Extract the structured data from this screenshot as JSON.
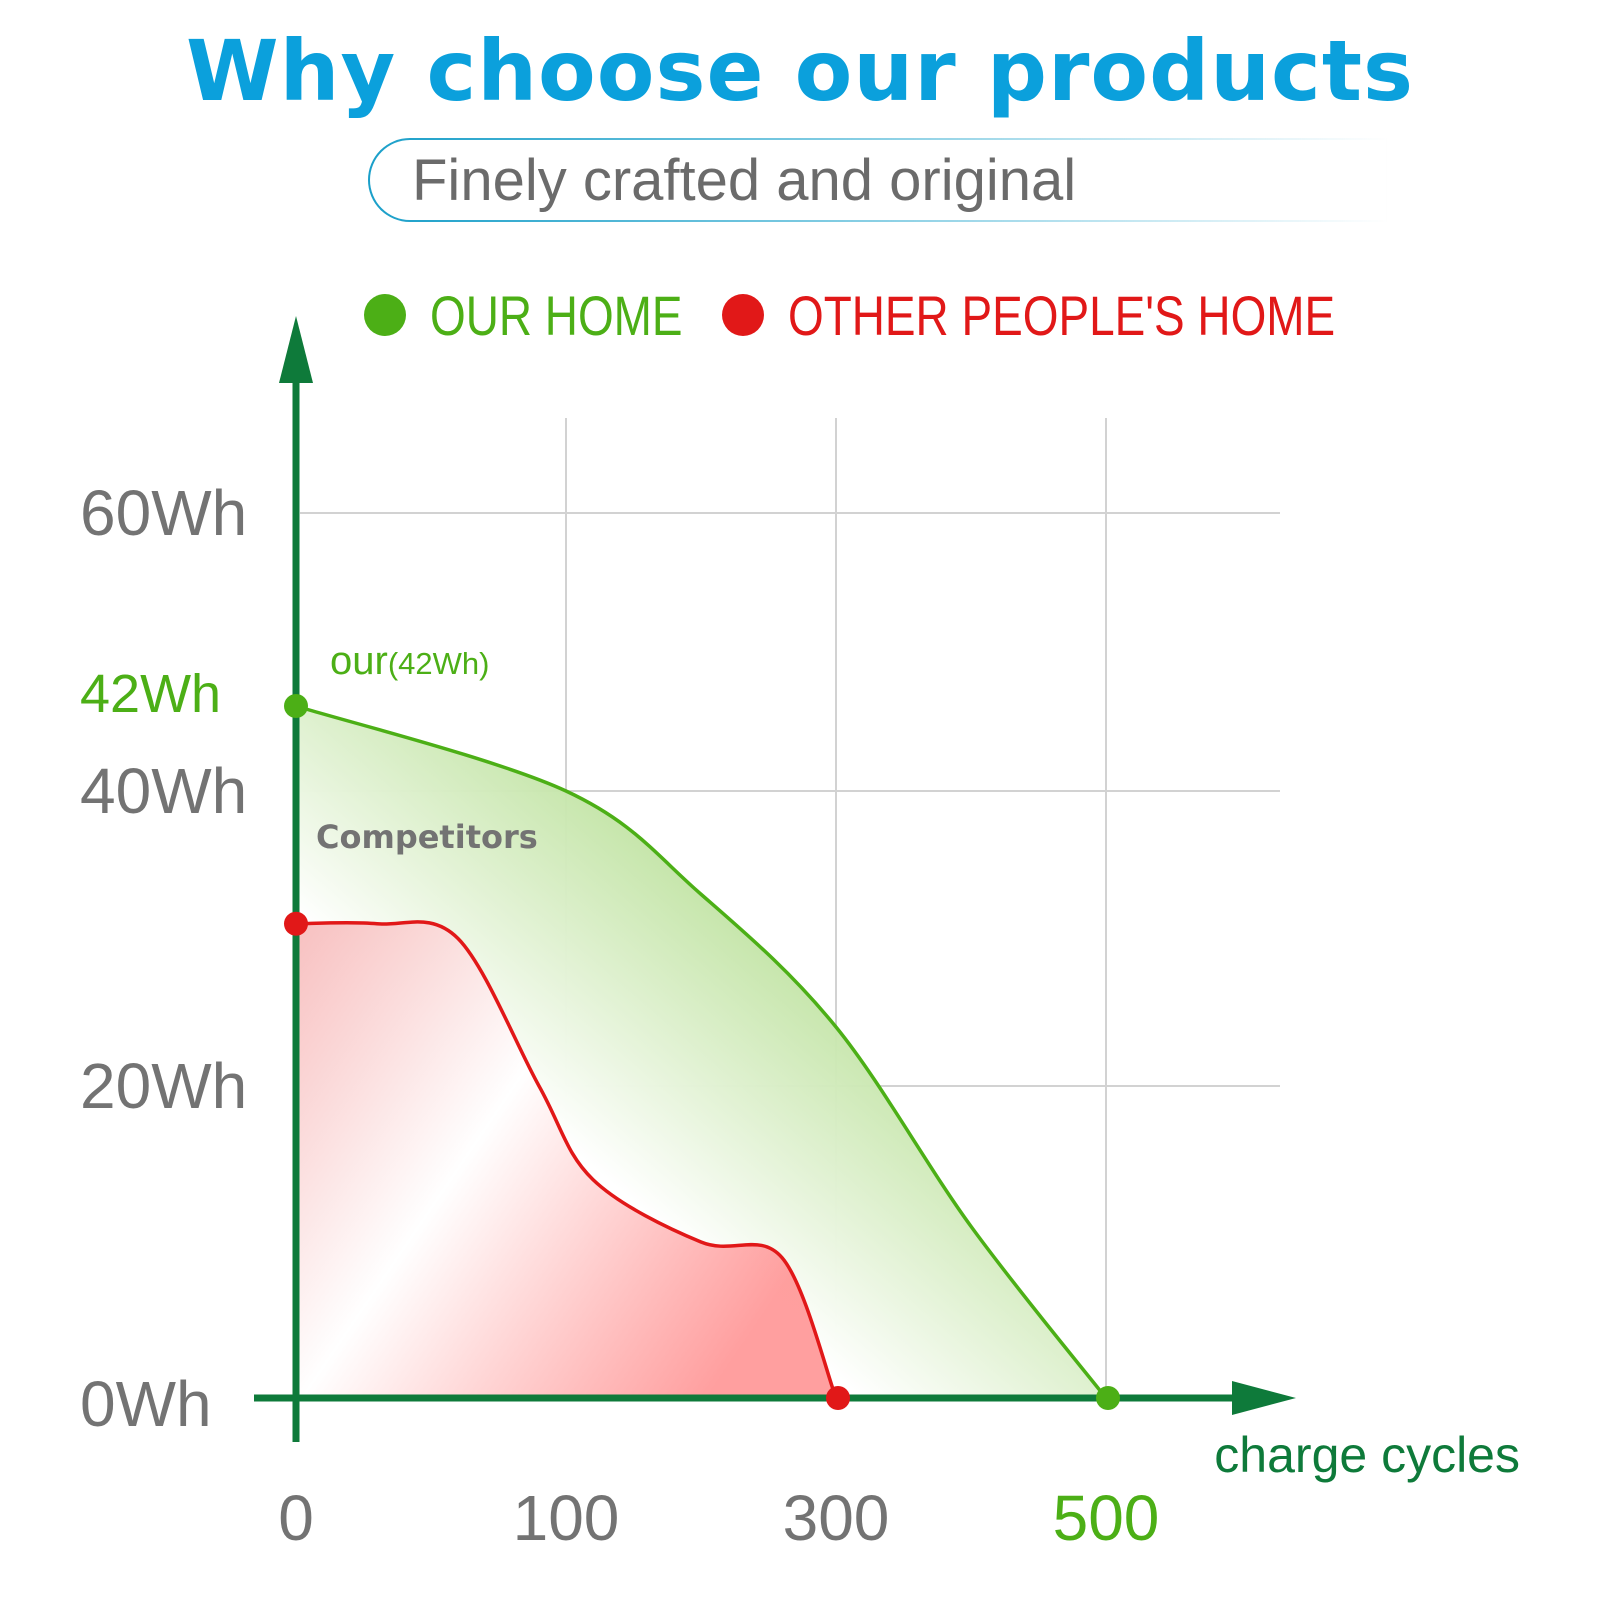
{
  "header": {
    "title": "Why choose our products",
    "subtitle": "Finely crafted and original"
  },
  "colors": {
    "title": "#0ba0dc",
    "axis": "#0e7a3a",
    "ours": "#4caf16",
    "competitor": "#e11818",
    "grid": "#d2d2d2",
    "label": "#737373"
  },
  "legend": [
    {
      "label": "OUR HOME",
      "color": "#4caf16"
    },
    {
      "label": "OTHER PEOPLE'S HOME",
      "color": "#e11818"
    }
  ],
  "chart_data": {
    "type": "area",
    "xlabel": "charge cycles",
    "ylabel": "",
    "x_ticks": [
      {
        "value": 0,
        "label": "0"
      },
      {
        "value": 100,
        "label": "100"
      },
      {
        "value": 300,
        "label": "300"
      },
      {
        "value": 500,
        "label": "500",
        "highlight": true
      }
    ],
    "y_ticks": [
      {
        "value": 0,
        "label": "0Wh"
      },
      {
        "value": 20,
        "label": "20Wh"
      },
      {
        "value": 40,
        "label": "40Wh"
      },
      {
        "value": 42,
        "label": "42Wh",
        "highlight": true
      },
      {
        "value": 60,
        "label": "60Wh"
      }
    ],
    "grid": true,
    "series": [
      {
        "name": "OUR HOME",
        "color": "#4caf16",
        "points": [
          [
            0,
            42
          ],
          [
            100,
            40
          ],
          [
            200,
            33
          ],
          [
            300,
            24
          ],
          [
            400,
            11
          ],
          [
            500,
            0
          ]
        ]
      },
      {
        "name": "OTHER PEOPLE'S HOME",
        "color": "#e11818",
        "points": [
          [
            0,
            31
          ],
          [
            30,
            31
          ],
          [
            60,
            30
          ],
          [
            90,
            20
          ],
          [
            120,
            14
          ],
          [
            200,
            10
          ],
          [
            260,
            9
          ],
          [
            300,
            0
          ]
        ]
      }
    ],
    "annotations": [
      {
        "main": "our",
        "small": "(42Wh)",
        "series": "OUR HOME"
      },
      {
        "main": "Competitors",
        "series": "OTHER PEOPLE'S HOME"
      }
    ]
  }
}
